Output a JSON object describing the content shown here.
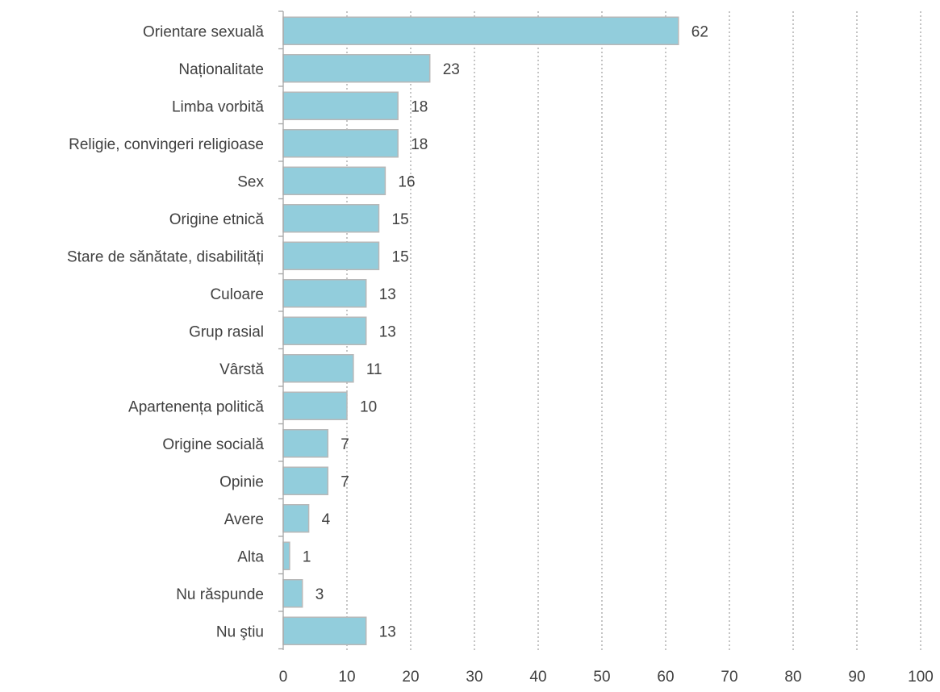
{
  "chart_data": {
    "type": "bar",
    "orientation": "horizontal",
    "categories": [
      "Orientare sexuală",
      "Naționalitate",
      "Limba vorbită",
      "Religie, convingeri religioase",
      "Sex",
      "Origine etnică",
      "Stare de sănătate, disabilități",
      "Culoare",
      "Grup rasial",
      "Vârstă",
      "Apartenența politică",
      "Origine socială",
      "Opinie",
      "Avere",
      "Alta",
      "Nu răspunde",
      "Nu ştiu"
    ],
    "values": [
      62,
      23,
      18,
      18,
      16,
      15,
      15,
      13,
      13,
      11,
      10,
      7,
      7,
      4,
      1,
      3,
      13
    ],
    "data_labels": [
      "62",
      "23",
      "18",
      "18",
      "16",
      "15",
      "15",
      "13",
      "13",
      "11",
      "10",
      "7",
      "7",
      "4",
      "1",
      "3",
      "13"
    ],
    "x_ticks": [
      "0",
      "10",
      "20",
      "30",
      "40",
      "50",
      "60",
      "70",
      "80",
      "90",
      "100"
    ],
    "xlim": [
      0,
      100
    ],
    "title": "",
    "xlabel": "",
    "ylabel": "",
    "grid": "vertical-dotted",
    "legend": "none",
    "colors": {
      "bar_fill": "#92cddc",
      "bar_stroke": "#b8b8b8",
      "grid": "#a6a6a6",
      "axis": "#a6a6a6",
      "text": "#404040"
    }
  }
}
